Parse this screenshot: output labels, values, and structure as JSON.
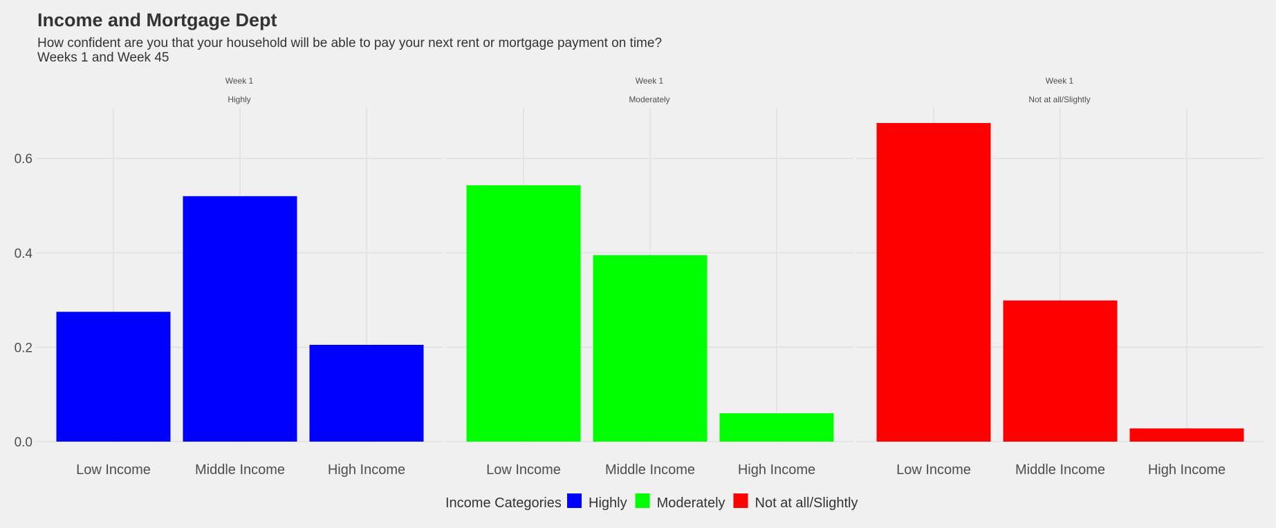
{
  "title": "Income and Mortgage Dept",
  "subtitle_line1": "How confident are you that your household will be able to pay your next rent or mortgage payment on time?",
  "subtitle_line2": "Weeks 1 and Week 45",
  "chart_data": {
    "type": "bar",
    "categories": [
      "Low Income",
      "Middle Income",
      "High Income"
    ],
    "ylim": [
      0,
      0.7
    ],
    "y_ticks": [
      0.0,
      0.2,
      0.4,
      0.6
    ],
    "y_tick_labels": [
      "0.0",
      "0.2",
      "0.4",
      "0.6"
    ],
    "grid": true,
    "facets": [
      {
        "week": "Week 1",
        "strip": "Highly",
        "color": "#0000ff",
        "values": [
          0.275,
          0.52,
          0.205
        ]
      },
      {
        "week": "Week 1",
        "strip": "Moderately",
        "color": "#00ff00",
        "values": [
          0.543,
          0.395,
          0.06
        ]
      },
      {
        "week": "Week 1",
        "strip": "Not at all/Slightly",
        "color": "#ff0000",
        "values": [
          0.675,
          0.299,
          0.028
        ]
      }
    ],
    "legend": {
      "title": "Income Categories",
      "position": "bottom",
      "items": [
        {
          "label": "Highly",
          "color": "#0000ff"
        },
        {
          "label": "Moderately",
          "color": "#00ff00"
        },
        {
          "label": "Not at all/Slightly",
          "color": "#ff0000"
        }
      ]
    }
  }
}
